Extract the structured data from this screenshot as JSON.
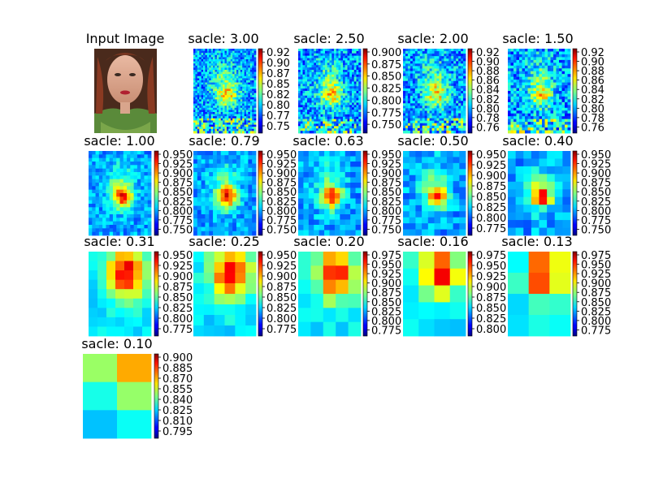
{
  "figure": {
    "input_title": "Input Image"
  },
  "chart_data": {
    "type": "heatmap",
    "title_prefix": "sacle: ",
    "colormap": "jet",
    "panels": [
      {
        "title": "sacle: 3.00",
        "ticks": [
          "0.92",
          "0.90",
          "0.87",
          "0.85",
          "0.82",
          "0.80",
          "0.77",
          "0.75"
        ]
      },
      {
        "title": "sacle: 2.50",
        "ticks": [
          "0.900",
          "0.875",
          "0.850",
          "0.825",
          "0.800",
          "0.775",
          "0.750"
        ]
      },
      {
        "title": "sacle: 2.00",
        "ticks": [
          "0.92",
          "0.90",
          "0.88",
          "0.86",
          "0.84",
          "0.82",
          "0.80",
          "0.78",
          "0.76"
        ]
      },
      {
        "title": "sacle: 1.50",
        "ticks": [
          "0.92",
          "0.90",
          "0.88",
          "0.86",
          "0.84",
          "0.82",
          "0.80",
          "0.78",
          "0.76"
        ]
      },
      {
        "title": "sacle: 1.00",
        "ticks": [
          "0.950",
          "0.925",
          "0.900",
          "0.875",
          "0.850",
          "0.825",
          "0.800",
          "0.775",
          "0.750"
        ]
      },
      {
        "title": "sacle: 0.79",
        "ticks": [
          "0.950",
          "0.925",
          "0.900",
          "0.875",
          "0.850",
          "0.825",
          "0.800",
          "0.775",
          "0.750"
        ]
      },
      {
        "title": "sacle: 0.63",
        "ticks": [
          "0.950",
          "0.925",
          "0.900",
          "0.875",
          "0.850",
          "0.825",
          "0.800",
          "0.775",
          "0.750"
        ]
      },
      {
        "title": "sacle: 0.50",
        "ticks": [
          "0.950",
          "0.925",
          "0.900",
          "0.875",
          "0.850",
          "0.825",
          "0.800",
          "0.775"
        ]
      },
      {
        "title": "sacle: 0.40",
        "ticks": [
          "0.950",
          "0.925",
          "0.900",
          "0.875",
          "0.850",
          "0.825",
          "0.800",
          "0.775",
          "0.750"
        ]
      },
      {
        "title": "sacle: 0.31",
        "ticks": [
          "0.950",
          "0.925",
          "0.900",
          "0.875",
          "0.850",
          "0.825",
          "0.800",
          "0.775"
        ]
      },
      {
        "title": "sacle: 0.25",
        "ticks": [
          "0.950",
          "0.925",
          "0.900",
          "0.875",
          "0.850",
          "0.825",
          "0.800",
          "0.775"
        ]
      },
      {
        "title": "sacle: 0.20",
        "ticks": [
          "0.975",
          "0.950",
          "0.925",
          "0.900",
          "0.875",
          "0.850",
          "0.825",
          "0.800",
          "0.775"
        ]
      },
      {
        "title": "sacle: 0.16",
        "ticks": [
          "0.975",
          "0.950",
          "0.925",
          "0.900",
          "0.875",
          "0.850",
          "0.825",
          "0.800"
        ]
      },
      {
        "title": "sacle: 0.13",
        "ticks": [
          "0.975",
          "0.950",
          "0.925",
          "0.900",
          "0.875",
          "0.850",
          "0.825",
          "0.800",
          "0.775"
        ]
      },
      {
        "title": "sacle: 0.10",
        "ticks": [
          "0.900",
          "0.885",
          "0.870",
          "0.855",
          "0.840",
          "0.825",
          "0.810",
          "0.795"
        ]
      }
    ]
  }
}
